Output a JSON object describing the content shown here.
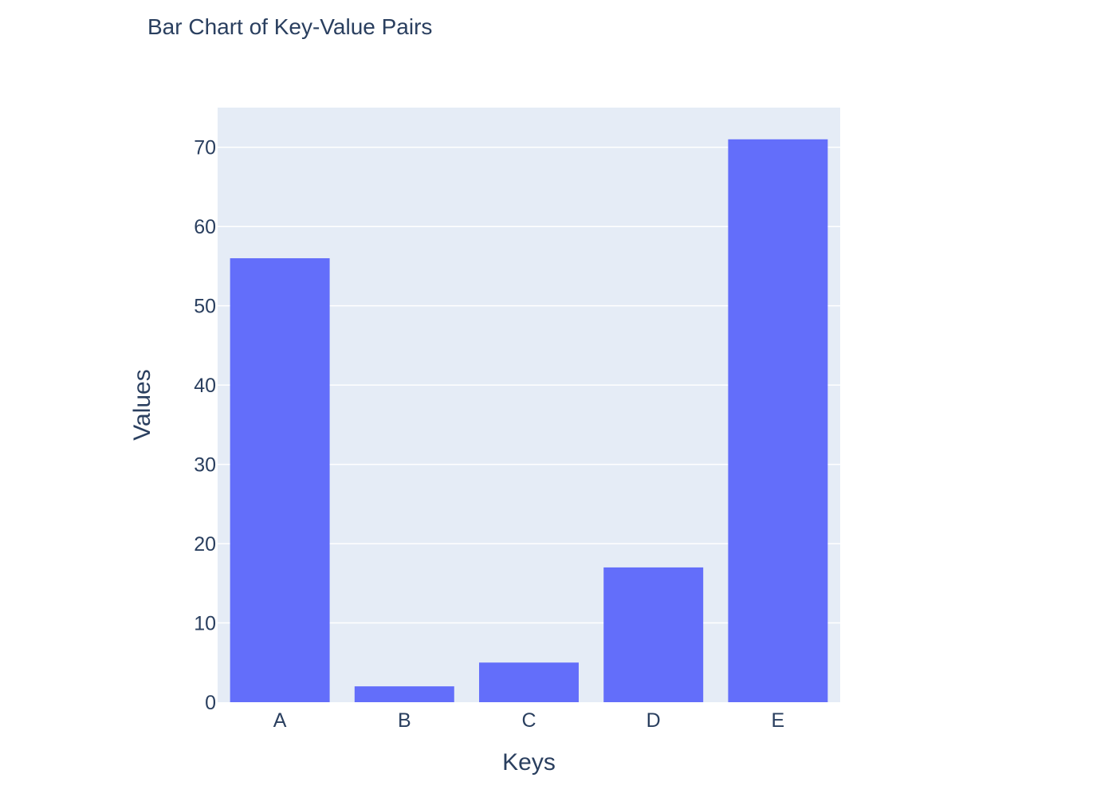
{
  "chart_data": {
    "type": "bar",
    "title": "Bar Chart of Key-Value Pairs",
    "xlabel": "Keys",
    "ylabel": "Values",
    "categories": [
      "A",
      "B",
      "C",
      "D",
      "E"
    ],
    "values": [
      56,
      2,
      5,
      17,
      71
    ],
    "ylim": [
      0,
      75
    ],
    "yticks": [
      0,
      10,
      20,
      30,
      40,
      50,
      60,
      70
    ],
    "grid": true,
    "colors": {
      "bar": "#636efa",
      "plot_background": "#e5ecf6",
      "grid": "#ffffff",
      "text": "#2a3f5f"
    }
  }
}
